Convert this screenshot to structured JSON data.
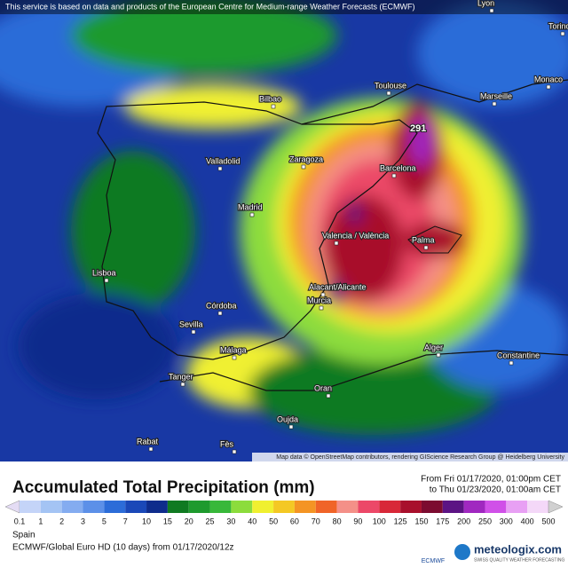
{
  "notice": "This service is based on data and products of the European Centre for Medium-range Weather Forecasts (ECMWF)",
  "map": {
    "cities": [
      "Lyon",
      "Torino",
      "Toulouse",
      "Marseille",
      "Monaco",
      "Bilbao",
      "Zaragoza",
      "Barcelona",
      "Valladolid",
      "Madrid",
      "Valencia / València",
      "Palma",
      "Lisboa",
      "Alacant/Alicante",
      "Murcia",
      "Córdoba",
      "Sevilla",
      "Málaga",
      "Tanger",
      "Alger",
      "Constantine",
      "Oran",
      "Oujda",
      "Rabat",
      "Fès"
    ],
    "max_label": "291",
    "attribution": "Map data © OpenStreetMap contributors, rendering GIScience Research Group @ Heidelberg University"
  },
  "legend": {
    "title": "Accumulated Total Precipitation (mm)",
    "from": "From Fri 01/17/2020, 01:00pm CET",
    "to": "to Thu 01/23/2020, 01:00am CET",
    "labels": [
      0.1,
      1,
      2,
      3,
      5,
      7,
      10,
      15,
      20,
      25,
      30,
      40,
      50,
      60,
      70,
      80,
      90,
      100,
      125,
      150,
      175,
      200,
      250,
      300,
      400,
      500
    ],
    "colors": [
      "#e4dcf4",
      "#c4d4f8",
      "#a4c4f4",
      "#84acf0",
      "#5c90e8",
      "#2c6cd8",
      "#1a48b8",
      "#0e2c8c",
      "#107a22",
      "#1e9a2e",
      "#38b83a",
      "#8cdc3c",
      "#f0f030",
      "#f4c824",
      "#f49424",
      "#f06428",
      "#f49088",
      "#ec4868",
      "#d82838",
      "#a8102c",
      "#7c0c30",
      "#5c1484",
      "#a028c0",
      "#d050e8",
      "#e8a0f4",
      "#f4d8f8",
      "#d0d0d0"
    ]
  },
  "footer": {
    "region": "Spain",
    "model": "ECMWF/Global Euro HD (10 days) from 01/17/2020/12z",
    "ecmwf": "ECMWF",
    "brand": "meteologix.com",
    "slogan": "SWISS QUALITY WEATHER FORECASTING"
  }
}
